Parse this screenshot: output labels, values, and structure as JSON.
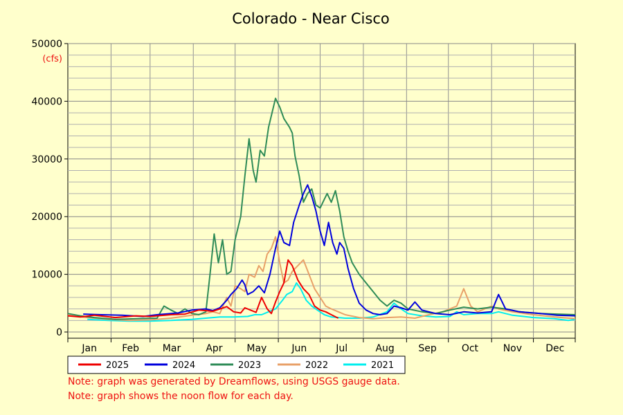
{
  "chart_data": {
    "type": "line",
    "title": "Colorado - Near Cisco",
    "ylabel": "(cfs)",
    "xlabel": "",
    "ylim": [
      0,
      50000
    ],
    "yticks": [
      0,
      10000,
      20000,
      30000,
      40000,
      50000
    ],
    "categories": [
      "Jan",
      "Feb",
      "Mar",
      "Apr",
      "May",
      "Jun",
      "Jul",
      "Aug",
      "Sep",
      "Oct",
      "Nov",
      "Dec"
    ],
    "x_unit": "day of year",
    "grid": true,
    "legend_placement": "bottom",
    "series": [
      {
        "name": "2025",
        "color": "#ee0000",
        "points": [
          [
            1,
            2800
          ],
          [
            10,
            2600
          ],
          [
            20,
            2900
          ],
          [
            35,
            2500
          ],
          [
            50,
            2800
          ],
          [
            60,
            2700
          ],
          [
            75,
            3000
          ],
          [
            85,
            3100
          ],
          [
            95,
            3800
          ],
          [
            105,
            3600
          ],
          [
            115,
            4400
          ],
          [
            120,
            3500
          ],
          [
            125,
            3300
          ],
          [
            128,
            4200
          ],
          [
            132,
            3800
          ],
          [
            136,
            3400
          ],
          [
            140,
            6000
          ],
          [
            144,
            4000
          ],
          [
            147,
            3200
          ],
          [
            150,
            5200
          ],
          [
            153,
            7000
          ],
          [
            156,
            8500
          ],
          [
            159,
            12500
          ],
          [
            162,
            11500
          ],
          [
            166,
            9000
          ],
          [
            170,
            7500
          ],
          [
            174,
            6500
          ],
          [
            178,
            4500
          ],
          [
            182,
            3800
          ],
          [
            186,
            3500
          ],
          [
            190,
            3000
          ],
          [
            195,
            2400
          ]
        ]
      },
      {
        "name": "2024",
        "color": "#0000dd",
        "points": [
          [
            12,
            3100
          ],
          [
            25,
            3000
          ],
          [
            40,
            2900
          ],
          [
            55,
            2700
          ],
          [
            65,
            3000
          ],
          [
            80,
            3300
          ],
          [
            90,
            3800
          ],
          [
            100,
            4000
          ],
          [
            105,
            3700
          ],
          [
            110,
            4200
          ],
          [
            115,
            5500
          ],
          [
            118,
            6500
          ],
          [
            122,
            7500
          ],
          [
            126,
            9000
          ],
          [
            128,
            8200
          ],
          [
            130,
            6500
          ],
          [
            134,
            7000
          ],
          [
            138,
            8000
          ],
          [
            142,
            6800
          ],
          [
            146,
            10000
          ],
          [
            150,
            14500
          ],
          [
            153,
            17500
          ],
          [
            156,
            15500
          ],
          [
            160,
            15000
          ],
          [
            163,
            19000
          ],
          [
            167,
            22000
          ],
          [
            170,
            24000
          ],
          [
            173,
            25500
          ],
          [
            176,
            23500
          ],
          [
            179,
            21000
          ],
          [
            182,
            17500
          ],
          [
            185,
            15000
          ],
          [
            188,
            19000
          ],
          [
            191,
            15500
          ],
          [
            194,
            13500
          ],
          [
            196,
            15500
          ],
          [
            199,
            14500
          ],
          [
            202,
            11000
          ],
          [
            206,
            7500
          ],
          [
            210,
            5000
          ],
          [
            215,
            3800
          ],
          [
            220,
            3200
          ],
          [
            225,
            3000
          ],
          [
            230,
            3200
          ],
          [
            235,
            4500
          ],
          [
            240,
            4200
          ],
          [
            245,
            3800
          ],
          [
            250,
            5200
          ],
          [
            255,
            3800
          ],
          [
            265,
            3200
          ],
          [
            275,
            3000
          ],
          [
            285,
            3500
          ],
          [
            295,
            3300
          ],
          [
            305,
            3500
          ],
          [
            310,
            6500
          ],
          [
            315,
            4000
          ],
          [
            325,
            3500
          ],
          [
            340,
            3200
          ],
          [
            352,
            2900
          ],
          [
            365,
            2800
          ]
        ]
      },
      {
        "name": "2023",
        "color": "#2e8b57",
        "points": [
          [
            1,
            3200
          ],
          [
            10,
            2800
          ],
          [
            20,
            2500
          ],
          [
            35,
            2200
          ],
          [
            50,
            2300
          ],
          [
            65,
            2400
          ],
          [
            70,
            4500
          ],
          [
            75,
            3800
          ],
          [
            80,
            3200
          ],
          [
            85,
            4000
          ],
          [
            90,
            3200
          ],
          [
            95,
            3000
          ],
          [
            100,
            3500
          ],
          [
            103,
            10000
          ],
          [
            106,
            17000
          ],
          [
            109,
            12000
          ],
          [
            112,
            16000
          ],
          [
            115,
            10000
          ],
          [
            118,
            10500
          ],
          [
            121,
            16000
          ],
          [
            125,
            20000
          ],
          [
            128,
            27000
          ],
          [
            131,
            33500
          ],
          [
            134,
            28000
          ],
          [
            136,
            26000
          ],
          [
            139,
            31500
          ],
          [
            142,
            30500
          ],
          [
            145,
            35500
          ],
          [
            148,
            38500
          ],
          [
            150,
            40500
          ],
          [
            153,
            39000
          ],
          [
            156,
            37000
          ],
          [
            160,
            35500
          ],
          [
            162,
            34500
          ],
          [
            164,
            30500
          ],
          [
            167,
            27000
          ],
          [
            170,
            22500
          ],
          [
            173,
            24000
          ],
          [
            176,
            24800
          ],
          [
            179,
            22000
          ],
          [
            182,
            21500
          ],
          [
            185,
            23000
          ],
          [
            187,
            24000
          ],
          [
            190,
            22500
          ],
          [
            193,
            24500
          ],
          [
            196,
            21000
          ],
          [
            199,
            16500
          ],
          [
            202,
            14000
          ],
          [
            205,
            12000
          ],
          [
            210,
            10000
          ],
          [
            215,
            8500
          ],
          [
            220,
            7000
          ],
          [
            225,
            5500
          ],
          [
            230,
            4500
          ],
          [
            235,
            5500
          ],
          [
            240,
            5000
          ],
          [
            245,
            4000
          ],
          [
            255,
            3500
          ],
          [
            265,
            3200
          ],
          [
            275,
            3800
          ],
          [
            285,
            4300
          ],
          [
            295,
            4000
          ],
          [
            305,
            4300
          ],
          [
            315,
            4000
          ],
          [
            325,
            3500
          ],
          [
            340,
            3200
          ],
          [
            352,
            3100
          ],
          [
            365,
            3000
          ]
        ]
      },
      {
        "name": "2022",
        "color": "#e8a068",
        "points": [
          [
            1,
            2900
          ],
          [
            15,
            2500
          ],
          [
            30,
            2200
          ],
          [
            45,
            2000
          ],
          [
            60,
            2100
          ],
          [
            75,
            2400
          ],
          [
            90,
            2900
          ],
          [
            100,
            3200
          ],
          [
            105,
            3500
          ],
          [
            110,
            3200
          ],
          [
            115,
            6000
          ],
          [
            118,
            4500
          ],
          [
            121,
            8000
          ],
          [
            125,
            7500
          ],
          [
            128,
            7000
          ],
          [
            131,
            10000
          ],
          [
            135,
            9500
          ],
          [
            138,
            11500
          ],
          [
            141,
            10500
          ],
          [
            144,
            13500
          ],
          [
            147,
            14500
          ],
          [
            150,
            16500
          ],
          [
            153,
            12000
          ],
          [
            156,
            8500
          ],
          [
            159,
            9000
          ],
          [
            162,
            10500
          ],
          [
            166,
            11500
          ],
          [
            170,
            12500
          ],
          [
            174,
            10000
          ],
          [
            178,
            7500
          ],
          [
            182,
            6000
          ],
          [
            186,
            4500
          ],
          [
            190,
            4000
          ],
          [
            195,
            3500
          ],
          [
            200,
            3000
          ],
          [
            210,
            2500
          ],
          [
            220,
            2300
          ],
          [
            230,
            2500
          ],
          [
            240,
            2600
          ],
          [
            250,
            2400
          ],
          [
            260,
            3000
          ],
          [
            270,
            3500
          ],
          [
            280,
            4500
          ],
          [
            285,
            7500
          ],
          [
            290,
            4500
          ],
          [
            295,
            3500
          ],
          [
            305,
            4500
          ],
          [
            310,
            4000
          ],
          [
            320,
            3500
          ],
          [
            335,
            3000
          ],
          [
            350,
            2600
          ],
          [
            365,
            2300
          ]
        ]
      },
      {
        "name": "2021",
        "color": "#00eeee",
        "points": [
          [
            15,
            2200
          ],
          [
            30,
            2000
          ],
          [
            45,
            1900
          ],
          [
            60,
            1900
          ],
          [
            75,
            2000
          ],
          [
            90,
            2200
          ],
          [
            100,
            2400
          ],
          [
            110,
            2600
          ],
          [
            120,
            2600
          ],
          [
            130,
            2700
          ],
          [
            135,
            3000
          ],
          [
            140,
            3000
          ],
          [
            145,
            3500
          ],
          [
            150,
            4000
          ],
          [
            155,
            5500
          ],
          [
            158,
            6500
          ],
          [
            162,
            7000
          ],
          [
            165,
            8500
          ],
          [
            168,
            7500
          ],
          [
            172,
            5500
          ],
          [
            176,
            4500
          ],
          [
            180,
            3800
          ],
          [
            185,
            3000
          ],
          [
            190,
            2600
          ],
          [
            200,
            2400
          ],
          [
            210,
            2400
          ],
          [
            220,
            2600
          ],
          [
            230,
            3500
          ],
          [
            235,
            5000
          ],
          [
            240,
            4000
          ],
          [
            245,
            3200
          ],
          [
            255,
            2800
          ],
          [
            265,
            2600
          ],
          [
            275,
            2700
          ],
          [
            280,
            3500
          ],
          [
            285,
            3000
          ],
          [
            295,
            3200
          ],
          [
            305,
            3200
          ],
          [
            310,
            3500
          ],
          [
            320,
            2900
          ],
          [
            335,
            2500
          ],
          [
            350,
            2300
          ],
          [
            360,
            2000
          ],
          [
            365,
            2200
          ]
        ]
      }
    ]
  },
  "notes": [
    "Note: graph was generated by Dreamflows, using USGS gauge data.",
    "Note: graph shows the noon flow for each day."
  ]
}
